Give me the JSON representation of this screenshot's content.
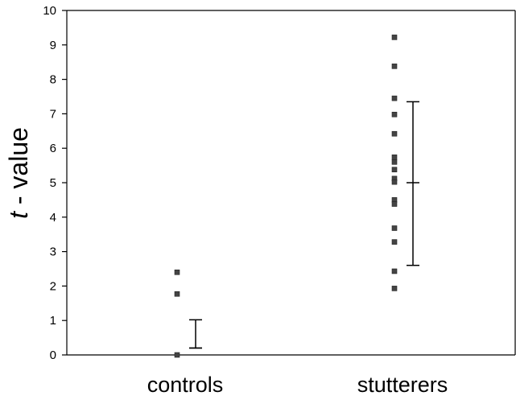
{
  "chart_data": {
    "type": "scatter",
    "ylabel_italic": "t",
    "ylabel_rest": " - value",
    "ylim": [
      0,
      10
    ],
    "yticks": [
      "0",
      "1",
      "2",
      "3",
      "4",
      "5",
      "6",
      "7",
      "8",
      "9",
      "10"
    ],
    "categories": [
      "controls",
      "stutterers"
    ],
    "series": [
      {
        "category": "controls",
        "points": [
          2.4,
          1.77,
          0.0
        ],
        "error_bar": {
          "mean": 0.2,
          "upper": 1.02,
          "lower": 0.2
        }
      },
      {
        "category": "stutterers",
        "points": [
          9.22,
          8.38,
          7.45,
          6.98,
          6.42,
          5.74,
          5.6,
          5.38,
          5.12,
          5.02,
          4.5,
          4.38,
          3.68,
          3.28,
          2.43,
          1.93
        ],
        "error_bar": {
          "mean": 5.0,
          "upper": 7.35,
          "lower": 2.6
        }
      }
    ],
    "grid": false,
    "legend": "none"
  }
}
